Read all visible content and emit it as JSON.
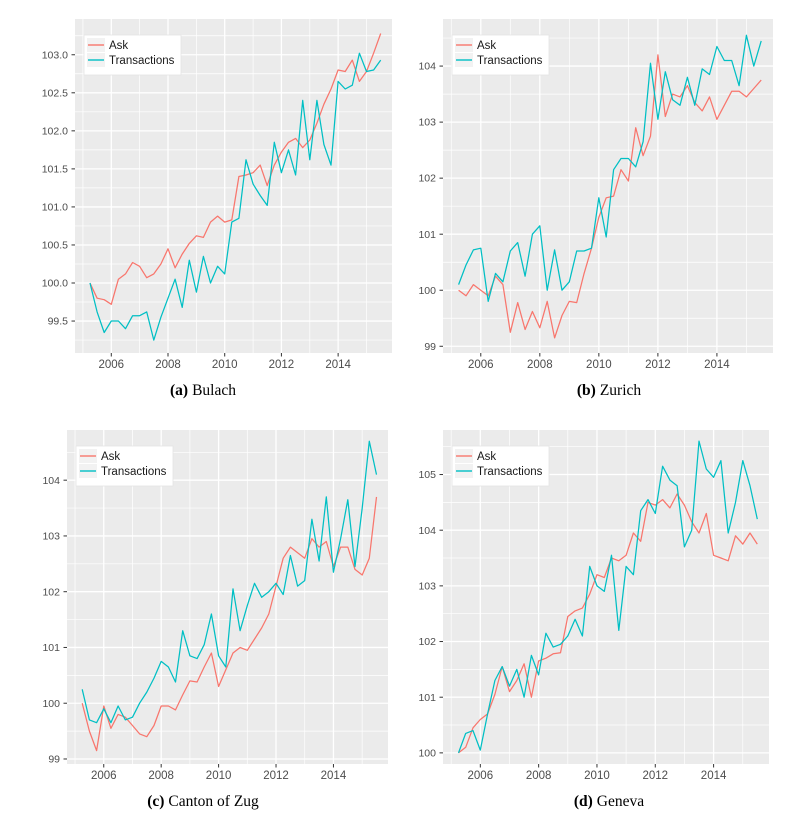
{
  "page": {
    "background": "#ffffff"
  },
  "colors": {
    "ask": "#F8766D",
    "transactions": "#00BFC4",
    "panel_bg": "#EBEBEB",
    "grid_major": "#FFFFFF",
    "grid_minor": "#FFFFFF",
    "axis_text": "#4D4D4D",
    "tick_mark": "#333333",
    "legend_bg": "#FFFFFF",
    "legend_border": "#E3E3E3",
    "legend_key_bg": "#F2F2F2",
    "legend_text": "#1A1A1A",
    "caption_text": "#000000"
  },
  "legend": {
    "entries": [
      {
        "key": "ask",
        "label": "Ask"
      },
      {
        "key": "transactions",
        "label": "Transactions"
      }
    ],
    "position": "top-left"
  },
  "chart_data": [
    {
      "type": "line",
      "caption_label": "(a)",
      "title": "Bulach",
      "x": [
        2005.25,
        2005.5,
        2005.75,
        2006,
        2006.25,
        2006.5,
        2006.75,
        2007,
        2007.25,
        2007.5,
        2007.75,
        2008,
        2008.25,
        2008.5,
        2008.75,
        2009,
        2009.25,
        2009.5,
        2009.75,
        2010,
        2010.25,
        2010.5,
        2010.75,
        2011,
        2011.25,
        2011.5,
        2011.75,
        2012,
        2012.25,
        2012.5,
        2012.75,
        2013,
        2013.25,
        2013.5,
        2013.75,
        2014,
        2014.25,
        2014.5,
        2014.75,
        2015,
        2015.25,
        2015.5
      ],
      "series": [
        {
          "name": "Ask",
          "color_key": "ask",
          "values": [
            100.0,
            99.8,
            99.78,
            99.72,
            100.05,
            100.12,
            100.27,
            100.22,
            100.07,
            100.12,
            100.25,
            100.45,
            100.2,
            100.38,
            100.52,
            100.62,
            100.6,
            100.8,
            100.88,
            100.8,
            100.83,
            101.4,
            101.42,
            101.45,
            101.55,
            101.28,
            101.55,
            101.72,
            101.85,
            101.9,
            101.78,
            101.88,
            102.1,
            102.35,
            102.55,
            102.8,
            102.78,
            102.93,
            102.65,
            102.78,
            103.02,
            103.28
          ]
        },
        {
          "name": "Transactions",
          "color_key": "transactions",
          "values": [
            100.0,
            99.62,
            99.35,
            99.5,
            99.5,
            99.4,
            99.57,
            99.57,
            99.62,
            99.25,
            99.55,
            99.8,
            100.05,
            99.68,
            100.3,
            99.88,
            100.35,
            100.0,
            100.22,
            100.12,
            100.8,
            100.85,
            101.62,
            101.3,
            101.15,
            101.02,
            101.85,
            101.45,
            101.75,
            101.42,
            102.4,
            101.62,
            102.4,
            101.82,
            101.55,
            102.65,
            102.55,
            102.6,
            103.02,
            102.78,
            102.8,
            102.93
          ]
        }
      ],
      "xticks": [
        2006,
        2008,
        2010,
        2012,
        2014
      ],
      "xticks_minor": [
        2005,
        2007,
        2009,
        2011,
        2013,
        2015
      ],
      "yticks": [
        99.5,
        100.0,
        100.5,
        101.0,
        101.5,
        102.0,
        102.5,
        103.0
      ],
      "ytick_labels": [
        "99.5",
        "100.0",
        "100.5",
        "101.0",
        "101.5",
        "102.0",
        "102.5",
        "103.0"
      ],
      "yticks_minor": [
        99.25,
        99.75,
        100.25,
        100.75,
        101.25,
        101.75,
        102.25,
        102.75,
        103.25
      ],
      "xlim": [
        2004.72,
        2015.9
      ],
      "ylim": [
        99.08,
        103.47
      ],
      "grid": true,
      "legend": true
    },
    {
      "type": "line",
      "caption_label": "(b)",
      "title": "Zurich",
      "x": [
        2005.25,
        2005.5,
        2005.75,
        2006,
        2006.25,
        2006.5,
        2006.75,
        2007,
        2007.25,
        2007.5,
        2007.75,
        2008,
        2008.25,
        2008.5,
        2008.75,
        2009,
        2009.25,
        2009.5,
        2009.75,
        2010,
        2010.25,
        2010.5,
        2010.75,
        2011,
        2011.25,
        2011.5,
        2011.75,
        2012,
        2012.25,
        2012.5,
        2012.75,
        2013,
        2013.25,
        2013.5,
        2013.75,
        2014,
        2014.25,
        2014.5,
        2014.75,
        2015,
        2015.25,
        2015.5
      ],
      "series": [
        {
          "name": "Ask",
          "color_key": "ask",
          "values": [
            100.0,
            99.9,
            100.1,
            100.0,
            99.9,
            100.25,
            100.1,
            99.25,
            99.78,
            99.3,
            99.62,
            99.33,
            99.8,
            99.15,
            99.55,
            99.8,
            99.78,
            100.3,
            100.75,
            101.3,
            101.65,
            101.68,
            102.15,
            101.95,
            102.9,
            102.4,
            102.75,
            104.2,
            103.1,
            103.5,
            103.45,
            103.65,
            103.35,
            103.2,
            103.45,
            103.05,
            103.3,
            103.55,
            103.55,
            103.45,
            103.6,
            103.75
          ]
        },
        {
          "name": "Transactions",
          "color_key": "transactions",
          "values": [
            100.1,
            100.45,
            100.72,
            100.75,
            99.8,
            100.3,
            100.15,
            100.7,
            100.85,
            100.25,
            101.0,
            101.15,
            100.0,
            100.72,
            100.0,
            100.15,
            100.7,
            100.7,
            100.75,
            101.65,
            100.95,
            102.15,
            102.35,
            102.35,
            102.2,
            102.65,
            104.05,
            103.05,
            103.9,
            103.4,
            103.3,
            103.8,
            103.3,
            103.95,
            103.85,
            104.35,
            104.1,
            104.1,
            103.65,
            104.55,
            104.0,
            104.45
          ]
        }
      ],
      "xticks": [
        2006,
        2008,
        2010,
        2012,
        2014
      ],
      "xticks_minor": [
        2005,
        2007,
        2009,
        2011,
        2013,
        2015
      ],
      "yticks": [
        99,
        100,
        101,
        102,
        103,
        104
      ],
      "ytick_labels": [
        "99",
        "100",
        "101",
        "102",
        "103",
        "104"
      ],
      "yticks_minor": [
        99.5,
        100.5,
        101.5,
        102.5,
        103.5,
        104.5
      ],
      "xlim": [
        2004.72,
        2015.9
      ],
      "ylim": [
        98.88,
        104.84
      ],
      "grid": true,
      "legend": true
    },
    {
      "type": "line",
      "caption_label": "(c)",
      "title": "Canton of Zug",
      "x": [
        2005.25,
        2005.5,
        2005.75,
        2006,
        2006.25,
        2006.5,
        2006.75,
        2007,
        2007.25,
        2007.5,
        2007.75,
        2008,
        2008.25,
        2008.5,
        2008.75,
        2009,
        2009.25,
        2009.5,
        2009.75,
        2010,
        2010.25,
        2010.5,
        2010.75,
        2011,
        2011.25,
        2011.5,
        2011.75,
        2012,
        2012.25,
        2012.5,
        2012.75,
        2013,
        2013.25,
        2013.5,
        2013.75,
        2014,
        2014.25,
        2014.5,
        2014.75,
        2015,
        2015.25,
        2015.5
      ],
      "series": [
        {
          "name": "Ask",
          "color_key": "ask",
          "values": [
            100.0,
            99.5,
            99.15,
            99.95,
            99.55,
            99.8,
            99.75,
            99.6,
            99.45,
            99.4,
            99.6,
            99.95,
            99.95,
            99.88,
            100.15,
            100.4,
            100.38,
            100.65,
            100.9,
            100.3,
            100.6,
            100.9,
            101.0,
            100.95,
            101.15,
            101.35,
            101.6,
            102.1,
            102.6,
            102.8,
            102.7,
            102.6,
            102.95,
            102.8,
            102.9,
            102.45,
            102.8,
            102.8,
            102.4,
            102.3,
            102.6,
            103.7
          ]
        },
        {
          "name": "Transactions",
          "color_key": "transactions",
          "values": [
            100.25,
            99.7,
            99.65,
            99.9,
            99.65,
            99.95,
            99.7,
            99.75,
            100.0,
            100.2,
            100.45,
            100.75,
            100.65,
            100.38,
            101.3,
            100.85,
            100.8,
            101.05,
            101.6,
            100.85,
            100.65,
            102.05,
            101.3,
            101.75,
            102.15,
            101.9,
            102.0,
            102.15,
            101.95,
            102.65,
            102.1,
            102.2,
            103.3,
            102.55,
            103.7,
            102.35,
            102.95,
            103.65,
            102.45,
            103.5,
            104.7,
            104.1
          ]
        }
      ],
      "xticks": [
        2006,
        2008,
        2010,
        2012,
        2014
      ],
      "xticks_minor": [
        2005,
        2007,
        2009,
        2011,
        2013,
        2015
      ],
      "yticks": [
        99,
        100,
        101,
        102,
        103,
        104
      ],
      "ytick_labels": [
        "99",
        "100",
        "101",
        "102",
        "103",
        "104"
      ],
      "yticks_minor": [
        99.5,
        100.5,
        101.5,
        102.5,
        103.5,
        104.5
      ],
      "xlim": [
        2004.72,
        2015.9
      ],
      "ylim": [
        98.91,
        104.9
      ],
      "grid": true,
      "legend": true
    },
    {
      "type": "line",
      "caption_label": "(d)",
      "title": "Geneva",
      "x": [
        2005.25,
        2005.5,
        2005.75,
        2006,
        2006.25,
        2006.5,
        2006.75,
        2007,
        2007.25,
        2007.5,
        2007.75,
        2008,
        2008.25,
        2008.5,
        2008.75,
        2009,
        2009.25,
        2009.5,
        2009.75,
        2010,
        2010.25,
        2010.5,
        2010.75,
        2011,
        2011.25,
        2011.5,
        2011.75,
        2012,
        2012.25,
        2012.5,
        2012.75,
        2013,
        2013.25,
        2013.5,
        2013.75,
        2014,
        2014.25,
        2014.5,
        2014.75,
        2015,
        2015.25,
        2015.5
      ],
      "series": [
        {
          "name": "Ask",
          "color_key": "ask",
          "values": [
            100.0,
            100.1,
            100.45,
            100.6,
            100.7,
            101.05,
            101.55,
            101.1,
            101.3,
            101.6,
            101.0,
            101.65,
            101.7,
            101.78,
            101.8,
            102.45,
            102.55,
            102.6,
            102.85,
            103.2,
            103.15,
            103.5,
            103.45,
            103.55,
            103.95,
            103.8,
            104.5,
            104.45,
            104.55,
            104.4,
            104.65,
            104.45,
            104.15,
            103.95,
            104.3,
            103.55,
            103.5,
            103.45,
            103.9,
            103.75,
            103.95,
            103.75
          ]
        },
        {
          "name": "Transactions",
          "color_key": "transactions",
          "values": [
            100.0,
            100.35,
            100.4,
            100.05,
            100.7,
            101.3,
            101.55,
            101.2,
            101.5,
            101.0,
            101.75,
            101.4,
            102.15,
            101.9,
            101.95,
            102.1,
            102.4,
            102.1,
            103.35,
            103.0,
            102.9,
            103.55,
            102.2,
            103.35,
            103.2,
            104.35,
            104.55,
            104.3,
            105.15,
            104.9,
            104.8,
            103.7,
            104.0,
            105.6,
            105.1,
            104.95,
            105.25,
            103.95,
            104.5,
            105.25,
            104.8,
            104.2
          ]
        }
      ],
      "xticks": [
        2006,
        2008,
        2010,
        2012,
        2014
      ],
      "xticks_minor": [
        2005,
        2007,
        2009,
        2011,
        2013,
        2015
      ],
      "yticks": [
        100,
        101,
        102,
        103,
        104,
        105
      ],
      "ytick_labels": [
        "100",
        "101",
        "102",
        "103",
        "104",
        "105"
      ],
      "yticks_minor": [
        100.5,
        101.5,
        102.5,
        103.5,
        104.5,
        105.5
      ],
      "xlim": [
        2004.72,
        2015.9
      ],
      "ylim": [
        99.8,
        105.8
      ],
      "grid": true,
      "legend": true
    }
  ]
}
